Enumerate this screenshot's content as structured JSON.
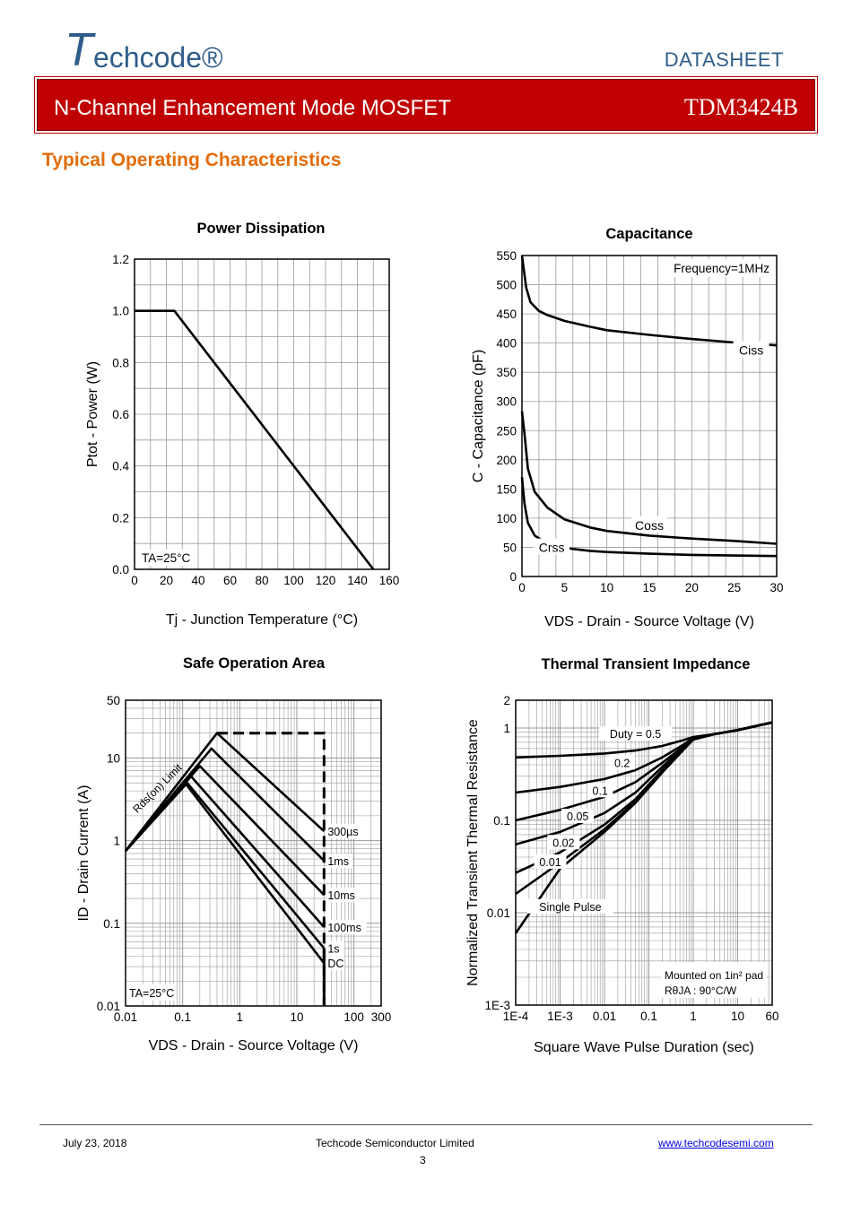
{
  "header": {
    "logo_initial": "T",
    "logo_rest": "echcode®",
    "doc_type": "DATASHEET",
    "banner_title": "N-Channel Enhancement Mode MOSFET",
    "part_number": "TDM3424B"
  },
  "section_title": "Typical Operating Characteristics",
  "footer": {
    "date": "July  23,  2018",
    "company": "Techcode  Semiconductor  Limited",
    "url": "www.techcodesemi.com",
    "page": "3"
  },
  "chart_data": [
    {
      "id": "power",
      "type": "line",
      "title": "Power Dissipation",
      "xlabel": "Tj - Junction Temperature (°C)",
      "ylabel": "Ptot - Power (W)",
      "xlim": [
        0,
        160
      ],
      "ylim": [
        0,
        1.2
      ],
      "xticks": [
        "0",
        "20",
        "40",
        "60",
        "80",
        "100",
        "120",
        "140",
        "160"
      ],
      "yticks": [
        "0.0",
        "0.2",
        "0.4",
        "0.6",
        "0.8",
        "1.0",
        "1.2"
      ],
      "annotation": "TA=25°C",
      "series": [
        {
          "name": "Ptot",
          "x": [
            0,
            25,
            150
          ],
          "y": [
            1.0,
            1.0,
            0.0
          ]
        }
      ]
    },
    {
      "id": "cap",
      "type": "line",
      "title": "Capacitance",
      "xlabel": "VDS - Drain - Source Voltage (V)",
      "ylabel": "C - Capacitance (pF)",
      "xlim": [
        0,
        30
      ],
      "ylim": [
        0,
        550
      ],
      "xticks": [
        "0",
        "5",
        "10",
        "15",
        "20",
        "25",
        "30"
      ],
      "yticks": [
        "0",
        "50",
        "100",
        "150",
        "200",
        "250",
        "300",
        "350",
        "400",
        "450",
        "500",
        "550"
      ],
      "annotation": "Frequency=1MHz",
      "series": [
        {
          "name": "Ciss",
          "x": [
            0,
            0.5,
            1,
            2,
            3,
            5,
            8,
            10,
            15,
            20,
            25,
            30
          ],
          "y": [
            550,
            495,
            470,
            455,
            448,
            438,
            428,
            422,
            414,
            407,
            401,
            396
          ]
        },
        {
          "name": "Coss",
          "x": [
            0,
            0.3,
            0.7,
            1.5,
            3,
            5,
            8,
            10,
            15,
            20,
            25,
            30
          ],
          "y": [
            283,
            245,
            185,
            145,
            118,
            98,
            84,
            78,
            70,
            65,
            61,
            56
          ]
        },
        {
          "name": "Crss",
          "x": [
            0,
            0.3,
            0.7,
            1.5,
            3,
            5,
            8,
            10,
            15,
            20,
            25,
            30
          ],
          "y": [
            170,
            125,
            92,
            70,
            56,
            49,
            44,
            42,
            39,
            37,
            36,
            35
          ]
        }
      ]
    },
    {
      "id": "soa",
      "type": "line",
      "title": "Safe Operation Area",
      "xlabel": "VDS - Drain - Source Voltage (V)",
      "ylabel": "ID - Drain Current (A)",
      "xscale": "log",
      "yscale": "log",
      "xlim": [
        0.01,
        300
      ],
      "ylim": [
        0.01,
        50
      ],
      "xticks": [
        "0.01",
        "0.1",
        "1",
        "10",
        "100",
        "300"
      ],
      "yticks": [
        "0.01",
        "0.1",
        "1",
        "10",
        "50"
      ],
      "annotation": "TA=25°C",
      "limit_label": "Rds(on) Limit",
      "series": [
        {
          "name": "300µs",
          "x": [
            0.01,
            0.4,
            30
          ],
          "y": [
            0.75,
            20,
            1.3
          ]
        },
        {
          "name": "1ms",
          "x": [
            0.01,
            0.32,
            30
          ],
          "y": [
            0.75,
            13,
            0.57
          ]
        },
        {
          "name": "10ms",
          "x": [
            0.01,
            0.2,
            30
          ],
          "y": [
            0.75,
            8,
            0.22
          ]
        },
        {
          "name": "100ms",
          "x": [
            0.01,
            0.14,
            30
          ],
          "y": [
            0.75,
            6,
            0.09
          ]
        },
        {
          "name": "1s",
          "x": [
            0.01,
            0.12,
            30
          ],
          "y": [
            0.75,
            5,
            0.05
          ]
        },
        {
          "name": "DC",
          "x": [
            0.01,
            0.11,
            30
          ],
          "y": [
            0.75,
            5,
            0.033
          ]
        }
      ],
      "boundary": {
        "x": [
          0.4,
          30,
          30
        ],
        "y": [
          20,
          20,
          0.01
        ]
      }
    },
    {
      "id": "thermal",
      "type": "line",
      "title": "Thermal Transient Impedance",
      "xlabel": "Square Wave Pulse Duration (sec)",
      "ylabel": "Normalized Transient Thermal Resistance",
      "xscale": "log",
      "yscale": "log",
      "xlim": [
        0.0001,
        60
      ],
      "ylim": [
        0.001,
        2
      ],
      "xticks": [
        "1E-4",
        "1E-3",
        "0.01",
        "0.1",
        "1",
        "10",
        "60"
      ],
      "yticks": [
        "1E-3",
        "0.01",
        "0.1",
        "1",
        "2"
      ],
      "annotation_line1": "Mounted on 1in² pad",
      "annotation_line2": "RθJA : 90°C/W",
      "series": [
        {
          "name": "Duty = 0.5",
          "x": [
            0.0001,
            0.001,
            0.01,
            0.05,
            0.2,
            0.6,
            1,
            3,
            10,
            60
          ],
          "y": [
            0.48,
            0.5,
            0.53,
            0.57,
            0.64,
            0.74,
            0.8,
            0.86,
            0.95,
            1.15
          ]
        },
        {
          "name": "0.2",
          "x": [
            0.0001,
            0.001,
            0.01,
            0.05,
            0.2,
            0.6,
            1,
            3,
            10,
            60
          ],
          "y": [
            0.2,
            0.23,
            0.28,
            0.35,
            0.48,
            0.66,
            0.78,
            0.86,
            0.95,
            1.15
          ]
        },
        {
          "name": "0.1",
          "x": [
            0.0001,
            0.001,
            0.01,
            0.05,
            0.2,
            0.6,
            1,
            3,
            10,
            60
          ],
          "y": [
            0.1,
            0.13,
            0.18,
            0.26,
            0.42,
            0.63,
            0.77,
            0.86,
            0.95,
            1.15
          ]
        },
        {
          "name": "0.05",
          "x": [
            0.0001,
            0.001,
            0.01,
            0.05,
            0.2,
            0.6,
            1,
            3,
            10,
            60
          ],
          "y": [
            0.055,
            0.075,
            0.12,
            0.2,
            0.38,
            0.61,
            0.76,
            0.86,
            0.95,
            1.15
          ]
        },
        {
          "name": "0.02",
          "x": [
            0.0001,
            0.001,
            0.01,
            0.05,
            0.2,
            0.6,
            1,
            3,
            10,
            60
          ],
          "y": [
            0.027,
            0.045,
            0.09,
            0.17,
            0.35,
            0.6,
            0.76,
            0.86,
            0.95,
            1.15
          ]
        },
        {
          "name": "0.01",
          "x": [
            0.0001,
            0.001,
            0.01,
            0.05,
            0.2,
            0.6,
            1,
            3,
            10,
            60
          ],
          "y": [
            0.016,
            0.035,
            0.08,
            0.16,
            0.34,
            0.59,
            0.75,
            0.86,
            0.95,
            1.15
          ]
        },
        {
          "name": "Single Pulse",
          "x": [
            0.0001,
            0.001,
            0.01,
            0.05,
            0.2,
            0.6,
            1,
            3,
            10,
            60
          ],
          "y": [
            0.006,
            0.03,
            0.075,
            0.155,
            0.33,
            0.58,
            0.75,
            0.86,
            0.95,
            1.15
          ]
        }
      ]
    }
  ]
}
